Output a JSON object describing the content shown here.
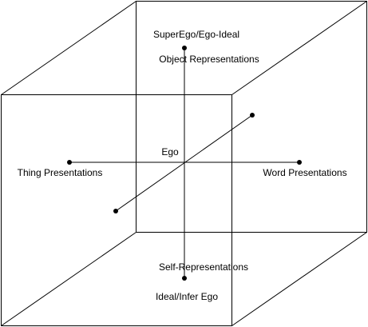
{
  "labels": {
    "top_outer": "SuperEgo/Ego-Ideal",
    "top_inner": "Object Representations",
    "center": "Ego",
    "left": "Thing Presentations",
    "right": "Word Presentations",
    "bottom_inner": "Self-Representations",
    "bottom_outer": "Ideal/Infer Ego"
  }
}
